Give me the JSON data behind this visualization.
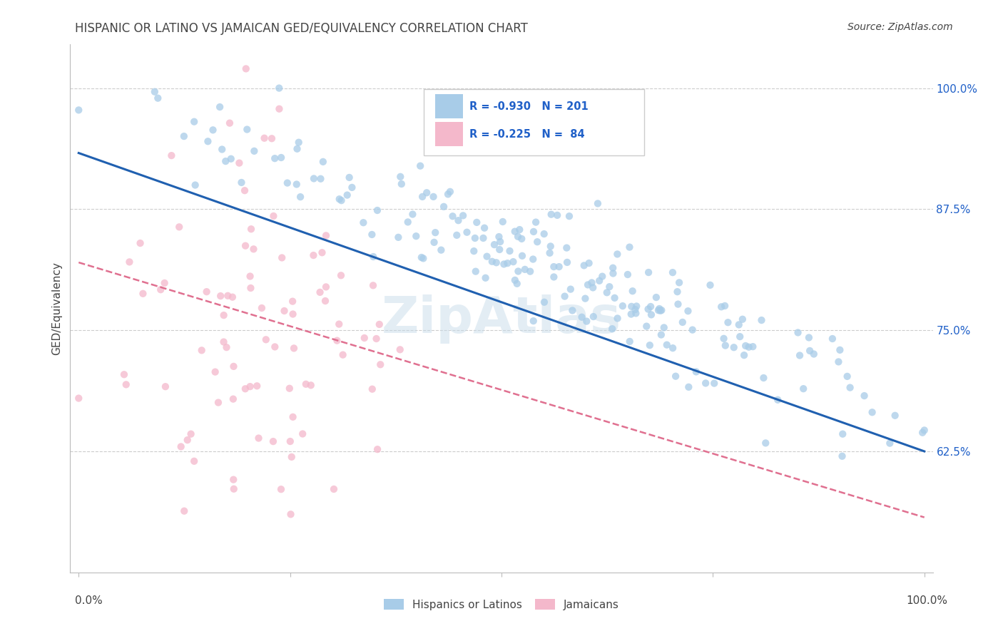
{
  "title": "HISPANIC OR LATINO VS JAMAICAN GED/EQUIVALENCY CORRELATION CHART",
  "source": "Source: ZipAtlas.com",
  "ylabel": "GED/Equivalency",
  "ytick_labels": [
    "62.5%",
    "75.0%",
    "87.5%",
    "100.0%"
  ],
  "ytick_values": [
    0.625,
    0.75,
    0.875,
    1.0
  ],
  "xlim": [
    -0.01,
    1.01
  ],
  "ylim": [
    0.5,
    1.045
  ],
  "legend_r_blue": "-0.930",
  "legend_n_blue": "201",
  "legend_r_pink": "-0.225",
  "legend_n_pink": "84",
  "blue_scatter_color": "#a8cce8",
  "pink_scatter_color": "#f4b8cb",
  "blue_line_color": "#2060b0",
  "pink_line_color": "#e07090",
  "text_color_blue": "#2060c8",
  "text_color_dark": "#444444",
  "title_fontsize": 12,
  "source_fontsize": 10,
  "background_color": "#ffffff",
  "grid_color": "#cccccc",
  "watermark_color": "#d8e8f0",
  "n_blue": 201,
  "n_pink": 84,
  "blue_seed": 7,
  "pink_seed": 42
}
